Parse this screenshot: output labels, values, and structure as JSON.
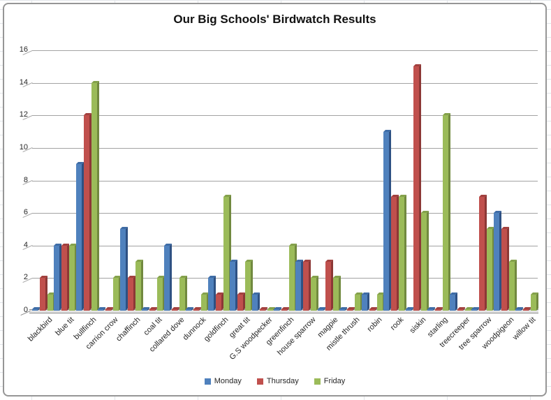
{
  "chart_data": {
    "type": "bar",
    "title": "Our Big Schools' Birdwatch Results",
    "categories": [
      "blackbird",
      "blue tit",
      "bullfinch",
      "carrion crow",
      "chaffinch",
      "coal tit",
      "collared dove",
      "dunnock",
      "goldfinch",
      "great tit",
      "G.S woodpecker",
      "greenfinch",
      "house sparrow",
      "magpie",
      "mistle thrush",
      "robin",
      "rook",
      "siskin",
      "starling",
      "treecreeper",
      "tree sparrow",
      "woodpigeon",
      "willow tit"
    ],
    "series": [
      {
        "name": "Monday",
        "color": "#4F81BD",
        "side_color": "#2e5183",
        "top_color": "#3e6ca6",
        "values": [
          0,
          4,
          9,
          0,
          5,
          0,
          4,
          0,
          2,
          3,
          1,
          0,
          3,
          0,
          0,
          1,
          11,
          0,
          0,
          1,
          0,
          6,
          0
        ]
      },
      {
        "name": "Thursday",
        "color": "#C0504D",
        "side_color": "#8c3836",
        "top_color": "#a2403e",
        "values": [
          2,
          4,
          12,
          0,
          2,
          0,
          0,
          0,
          1,
          1,
          0,
          0,
          3,
          3,
          0,
          0,
          7,
          15,
          0,
          0,
          7,
          5,
          0
        ]
      },
      {
        "name": "Friday",
        "color": "#9BBB59",
        "side_color": "#71893f",
        "top_color": "#84a14b",
        "values": [
          1,
          4,
          14,
          2,
          3,
          2,
          2,
          1,
          7,
          3,
          0,
          4,
          2,
          2,
          1,
          1,
          7,
          6,
          12,
          0,
          5,
          3,
          1
        ]
      }
    ],
    "xlabel": "",
    "ylabel": "",
    "ylim": [
      0,
      16
    ],
    "y_ticks": [
      0,
      2,
      4,
      6,
      8,
      10,
      12,
      14,
      16
    ],
    "grid": "horizontal",
    "legend_position": "bottom",
    "style": "excel-3d-clustered-column"
  }
}
